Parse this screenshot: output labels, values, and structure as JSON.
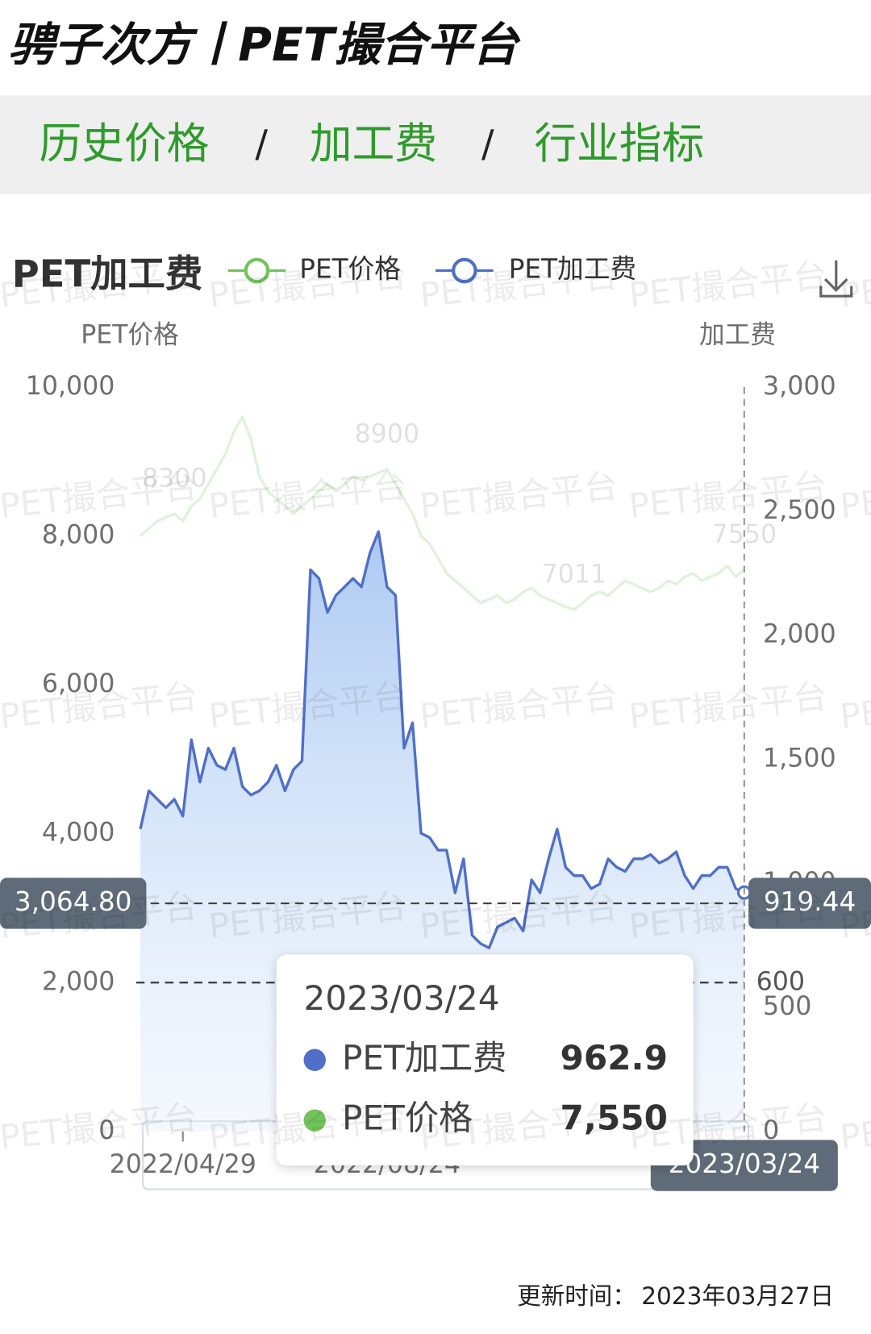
{
  "header": {
    "title": "骋子次方丨PET撮合平台"
  },
  "nav": {
    "tabs": [
      "历史价格",
      "加工费",
      "行业指标"
    ],
    "separator": "/"
  },
  "watermark": "PET撮合平台",
  "chart_data": {
    "type": "line",
    "title": "PET加工费",
    "y_axis_label": "PET价格",
    "y2_axis_label": "加工费",
    "categories": [
      null,
      null,
      null,
      null,
      null,
      "2022/04/29",
      null,
      null,
      null,
      null,
      null,
      null,
      null,
      null,
      null,
      null,
      null,
      null,
      null,
      null,
      null,
      null,
      null,
      null,
      null,
      null,
      null,
      null,
      null,
      "2022/08/24",
      null,
      null,
      null,
      null,
      null,
      null,
      null,
      null,
      null,
      null,
      null,
      null,
      null,
      null,
      null,
      null,
      null,
      null,
      null,
      null,
      null,
      null,
      null,
      null,
      null,
      null,
      null,
      null,
      null,
      null,
      null,
      null,
      null,
      null,
      null,
      null,
      null,
      null,
      null,
      null,
      null,
      "2023/03/24"
    ],
    "series": [
      {
        "name": "PET价格",
        "color": "#72c35a",
        "axis": "y",
        "line_opacity": 0.22,
        "labeled_indices": [
          4,
          29,
          51,
          71
        ],
        "values": [
          8000,
          8100,
          8200,
          8250,
          8300,
          8200,
          8400,
          8500,
          8700,
          8900,
          9100,
          9400,
          9600,
          9300,
          8800,
          8600,
          8500,
          8400,
          8300,
          8400,
          8500,
          8600,
          8700,
          8600,
          8700,
          8800,
          8750,
          8800,
          8850,
          8900,
          8700,
          8500,
          8300,
          8000,
          7900,
          7700,
          7500,
          7400,
          7300,
          7200,
          7100,
          7150,
          7200,
          7100,
          7150,
          7250,
          7300,
          7200,
          7150,
          7100,
          7050,
          7011,
          7100,
          7200,
          7250,
          7200,
          7300,
          7400,
          7350,
          7300,
          7250,
          7300,
          7400,
          7350,
          7450,
          7500,
          7400,
          7450,
          7500,
          7600,
          7450,
          7550
        ]
      },
      {
        "name": "PET加工费",
        "color": "#4f6fc9",
        "axis": "y2",
        "area": true,
        "values": [
          1219,
          1373,
          1339,
          1305,
          1339,
          1271,
          1579,
          1408,
          1545,
          1476,
          1459,
          1545,
          1390,
          1356,
          1373,
          1408,
          1476,
          1373,
          1459,
          1493,
          2264,
          2229,
          2092,
          2161,
          2195,
          2229,
          2195,
          2332,
          2418,
          2195,
          2161,
          1545,
          1647,
          1202,
          1185,
          1134,
          1134,
          962,
          1099,
          791,
          757,
          740,
          825,
          842,
          860,
          808,
          1014,
          962,
          1099,
          1219,
          1065,
          1031,
          1031,
          979,
          997,
          1099,
          1065,
          1048,
          1099,
          1099,
          1116,
          1082,
          1099,
          1127,
          1031,
          979,
          1031,
          1031,
          1065,
          1065,
          979,
          962.9
        ]
      }
    ],
    "ylim": [
      0,
      10000
    ],
    "yticks": [
      0,
      {
        "value": 2000,
        "label": "2,000"
      },
      {
        "value": 4000,
        "label": "4,000"
      },
      {
        "value": 6000,
        "label": "6,000"
      },
      {
        "value": 8000,
        "label": "8,000"
      },
      {
        "value": 10000,
        "label": "10,000"
      }
    ],
    "y2lim": [
      0,
      3000
    ],
    "y2ticks": [
      0,
      500,
      {
        "value": 1000,
        "label": "1,000"
      },
      {
        "value": 1500,
        "label": "1,500"
      },
      {
        "value": 2000,
        "label": "2,000"
      },
      {
        "value": 2500,
        "label": "2,500"
      },
      {
        "value": 3000,
        "label": "3,000"
      }
    ],
    "mark_line": {
      "axis": "y2",
      "value": 600
    },
    "axis_pointer": {
      "y": {
        "value": 3064.8,
        "label": "3,064.80"
      },
      "y2": 919.44
    },
    "tooltip": {
      "values": [
        962.9,
        {
          "value": 7550,
          "label": "7,550"
        }
      ]
    }
  },
  "footer": {
    "label": "更新时间：",
    "date": "2023年03月27日"
  }
}
